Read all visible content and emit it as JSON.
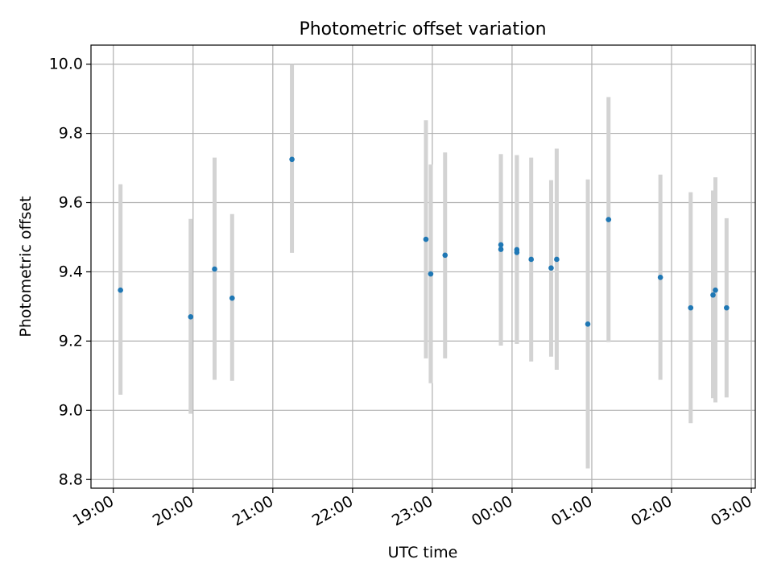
{
  "chart_data": {
    "type": "scatter",
    "title": "Photometric offset variation",
    "xlabel": "UTC time",
    "ylabel": "Photometric offset",
    "x_unit": "hours",
    "x_ticks": [
      {
        "value": 19,
        "label": "19:00"
      },
      {
        "value": 20,
        "label": "20:00"
      },
      {
        "value": 21,
        "label": "21:00"
      },
      {
        "value": 22,
        "label": "22:00"
      },
      {
        "value": 23,
        "label": "23:00"
      },
      {
        "value": 24,
        "label": "00:00"
      },
      {
        "value": 25,
        "label": "01:00"
      },
      {
        "value": 26,
        "label": "02:00"
      },
      {
        "value": 27,
        "label": "03:00"
      }
    ],
    "y_ticks": [
      8.8,
      9.0,
      9.2,
      9.4,
      9.6,
      9.8,
      10.0
    ],
    "xlim": [
      18.72,
      27.05
    ],
    "ylim": [
      8.775,
      10.055
    ],
    "grid": true,
    "point_color": "#1f77b4",
    "errorbar_color": "#d3d3d3",
    "grid_color": "#b0b0b0",
    "points": [
      {
        "x": 19.09,
        "y": 9.347,
        "ylow": 9.045,
        "yhigh": 9.653
      },
      {
        "x": 19.97,
        "y": 9.27,
        "ylow": 8.99,
        "yhigh": 9.553
      },
      {
        "x": 20.27,
        "y": 9.408,
        "ylow": 9.088,
        "yhigh": 9.73
      },
      {
        "x": 20.49,
        "y": 9.324,
        "ylow": 9.085,
        "yhigh": 9.567
      },
      {
        "x": 21.24,
        "y": 9.725,
        "ylow": 9.455,
        "yhigh": 10.0
      },
      {
        "x": 22.92,
        "y": 9.494,
        "ylow": 9.15,
        "yhigh": 9.838
      },
      {
        "x": 22.98,
        "y": 9.394,
        "ylow": 9.078,
        "yhigh": 9.71
      },
      {
        "x": 23.16,
        "y": 9.448,
        "ylow": 9.15,
        "yhigh": 9.745
      },
      {
        "x": 23.86,
        "y": 9.478,
        "ylow": 9.187,
        "yhigh": 9.74
      },
      {
        "x": 23.86,
        "y": 9.465,
        "ylow": 9.187,
        "yhigh": 9.74
      },
      {
        "x": 24.06,
        "y": 9.464,
        "ylow": 9.192,
        "yhigh": 9.737
      },
      {
        "x": 24.06,
        "y": 9.456,
        "ylow": 9.192,
        "yhigh": 9.737
      },
      {
        "x": 24.24,
        "y": 9.436,
        "ylow": 9.141,
        "yhigh": 9.73
      },
      {
        "x": 24.49,
        "y": 9.411,
        "ylow": 9.155,
        "yhigh": 9.665
      },
      {
        "x": 24.56,
        "y": 9.436,
        "ylow": 9.117,
        "yhigh": 9.756
      },
      {
        "x": 24.95,
        "y": 9.249,
        "ylow": 8.832,
        "yhigh": 9.667
      },
      {
        "x": 25.21,
        "y": 9.551,
        "ylow": 9.197,
        "yhigh": 9.905
      },
      {
        "x": 25.86,
        "y": 9.384,
        "ylow": 9.088,
        "yhigh": 9.681
      },
      {
        "x": 26.24,
        "y": 9.296,
        "ylow": 8.963,
        "yhigh": 9.63
      },
      {
        "x": 26.52,
        "y": 9.333,
        "ylow": 9.035,
        "yhigh": 9.635
      },
      {
        "x": 26.55,
        "y": 9.347,
        "ylow": 9.023,
        "yhigh": 9.673
      },
      {
        "x": 26.69,
        "y": 9.296,
        "ylow": 9.037,
        "yhigh": 9.555
      }
    ]
  }
}
